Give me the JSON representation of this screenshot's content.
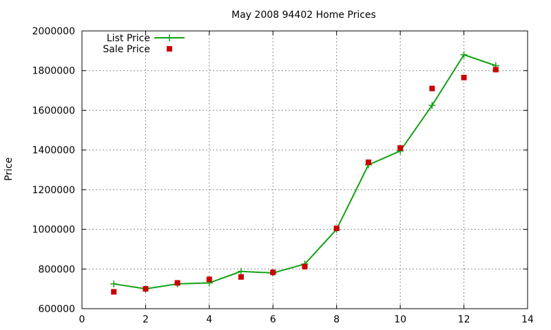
{
  "chart_data": {
    "type": "line",
    "title": "May 2008 94402 Home Prices",
    "xlabel": "",
    "ylabel": "Price",
    "xlim": [
      0,
      14
    ],
    "ylim": [
      600000,
      2000000
    ],
    "xticks": [
      "0",
      "2",
      "4",
      "6",
      "8",
      "10",
      "12",
      "14"
    ],
    "yticks": [
      "600000",
      "800000",
      "1000000",
      "1200000",
      "1400000",
      "1600000",
      "1800000",
      "2000000"
    ],
    "grid": true,
    "legend_position": "top-left",
    "series": [
      {
        "name": "List Price",
        "style": "line-with-plus-markers",
        "color": "#11a011",
        "x": [
          1,
          2,
          3,
          4,
          5,
          6,
          7,
          8,
          9,
          10,
          11,
          12,
          13
        ],
        "y": [
          725000,
          700000,
          725000,
          730000,
          788000,
          780000,
          825000,
          1000000,
          1325000,
          1395000,
          1625000,
          1880000,
          1825000
        ]
      },
      {
        "name": "Sale Price",
        "style": "square-markers",
        "color": "#cc0000",
        "x": [
          1,
          2,
          3,
          4,
          5,
          6,
          7,
          8,
          9,
          10,
          11,
          12,
          13
        ],
        "y": [
          685000,
          700000,
          730000,
          748000,
          760000,
          783000,
          812000,
          1005000,
          1338000,
          1410000,
          1710000,
          1765000,
          1805000
        ]
      }
    ]
  }
}
